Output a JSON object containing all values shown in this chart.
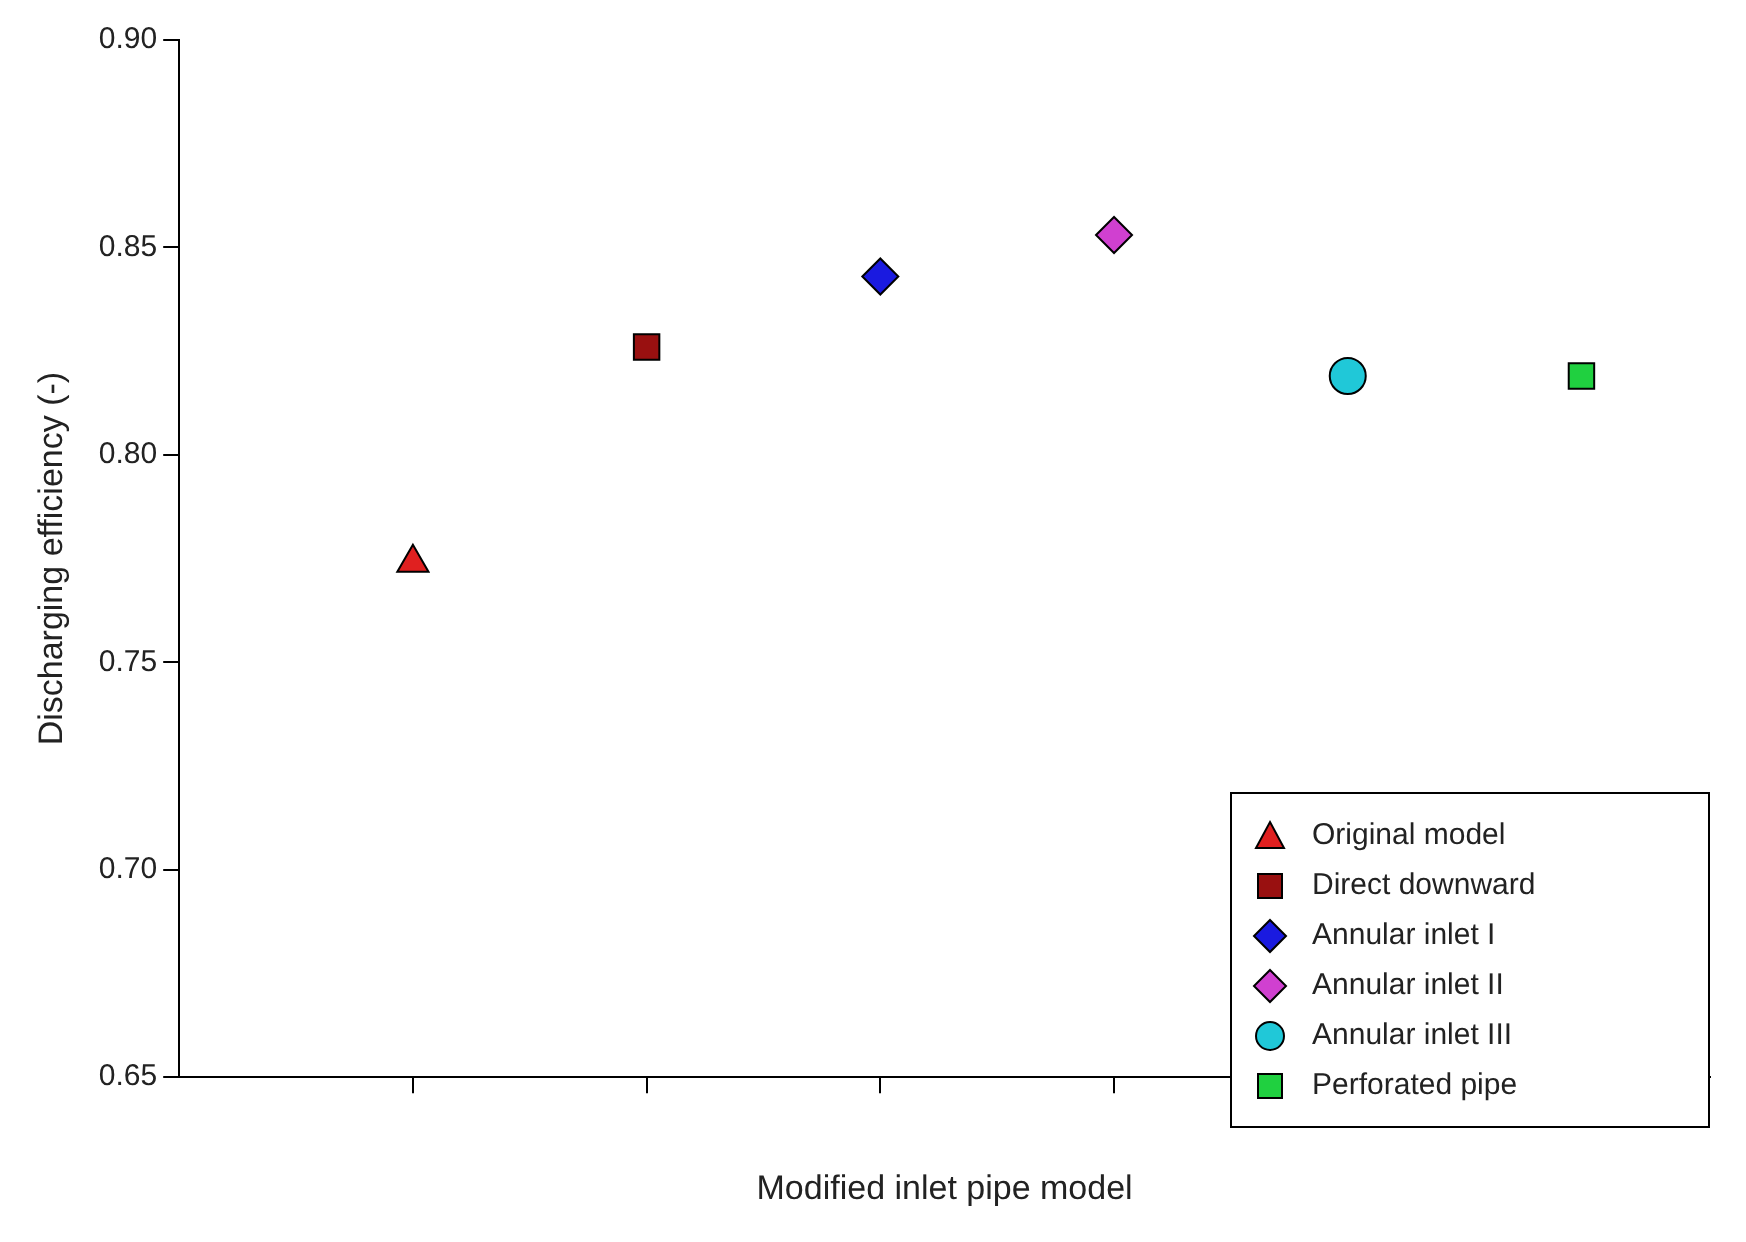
{
  "chart_data": {
    "type": "scatter",
    "xlabel": "Modified inlet pipe model",
    "ylabel": "Discharging efficiency (-)",
    "categories": [
      null,
      null,
      null,
      null,
      null,
      null
    ],
    "ylim": [
      0.65,
      0.9
    ],
    "yticks": [
      0.65,
      {
        "value": 0.7,
        "label": "0.70"
      },
      0.75,
      {
        "value": 0.8,
        "label": "0.80"
      },
      0.85,
      {
        "value": 0.9,
        "label": "0.90"
      }
    ],
    "tick_labels": "y",
    "legend": "bottom right",
    "series": [
      {
        "name": "Original model",
        "color": "#e02020",
        "marker": "triangle",
        "values": [
          0.774,
          null,
          null,
          null,
          null,
          null
        ]
      },
      {
        "name": "Direct downward",
        "color": "#991010",
        "marker": "square",
        "values": [
          null,
          0.826,
          null,
          null,
          null,
          null
        ]
      },
      {
        "name": "Annular inlet I",
        "color": "#1a1ae0",
        "marker": "diamond",
        "values": [
          null,
          null,
          0.843,
          null,
          null,
          null
        ]
      },
      {
        "name": "Annular inlet II",
        "color": "#d040d0",
        "marker": "diamond",
        "values": [
          null,
          null,
          null,
          0.853,
          null,
          null
        ]
      },
      {
        "name": "Annular inlet III",
        "color": "#20c8d8",
        "marker": "circle",
        "values": [
          null,
          null,
          null,
          null,
          0.819,
          null
        ]
      },
      {
        "name": "Perforated pipe",
        "color": "#20d040",
        "marker": "square",
        "values": [
          null,
          null,
          null,
          null,
          null,
          0.819
        ]
      }
    ]
  }
}
